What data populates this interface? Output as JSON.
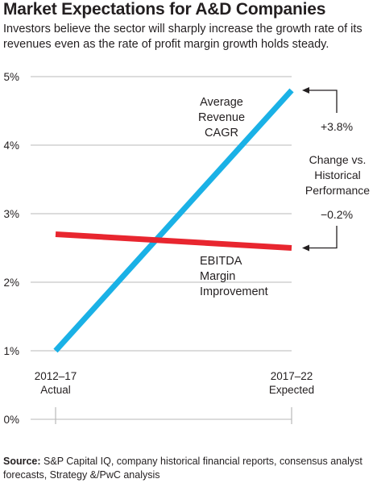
{
  "title": "Market Expectations for A&D Companies",
  "subtitle": "Investors believe the sector will sharply increase the growth rate of its revenues even as the rate of profit margin growth holds steady.",
  "source": {
    "label": "Source:",
    "text": " S&P Capital IQ, company historical financial reports, consensus analyst forecasts, Strategy &/PwC analysis"
  },
  "annotations": {
    "revenue_change": "+3.8%",
    "ebitda_change": "−0.2%",
    "change_label": [
      "Change vs.",
      "Historical",
      "Performance"
    ]
  },
  "colors": {
    "revenue": "#1ab1e6",
    "ebitda": "#e8262f",
    "grid": "#b9b9b9",
    "text": "#231f20"
  },
  "chart_data": {
    "type": "line",
    "categories": [
      [
        "2012–17",
        "Actual"
      ],
      [
        "2017–22",
        "Expected"
      ]
    ],
    "y_ticks": [
      "0%",
      "1%",
      "2%",
      "3%",
      "4%",
      "5%"
    ],
    "ylim": [
      0,
      5
    ],
    "grid": true,
    "series": [
      {
        "name": [
          "Average",
          "Revenue",
          "CAGR"
        ],
        "values": [
          1.0,
          4.8
        ],
        "color": "#1ab1e6"
      },
      {
        "name": [
          "EBITDA",
          "Margin",
          "Improvement"
        ],
        "values": [
          2.7,
          2.5
        ],
        "color": "#e8262f"
      }
    ]
  }
}
